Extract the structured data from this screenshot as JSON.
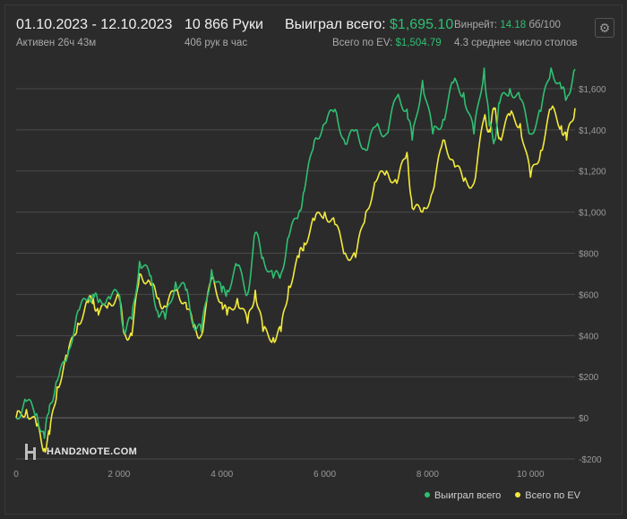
{
  "header": {
    "date_range": "01.10.2023 - 12.10.2023",
    "active": "Активен 26ч 43м",
    "hands": "10 866 Руки",
    "hands_per_hour": "406 рук в час",
    "won_total_label": "Выиграл всего:",
    "won_total_value": "$1,695.10",
    "ev_total_label": "Всего по EV:",
    "ev_total_value": "$1,504.79",
    "winrate_label": "Винрейт:",
    "winrate_value": "14.18",
    "winrate_unit": "бб/100",
    "avg_tables": "4.3 среднее число столов",
    "settings_icon": "gear-icon"
  },
  "logo": {
    "text": "HAND2NOTE.COM",
    "icon": "hand2note-logo-icon"
  },
  "chart_data": {
    "type": "line",
    "xlim": [
      0,
      10866
    ],
    "ylim": [
      -200,
      1700
    ],
    "x_ticks": [
      0,
      2000,
      4000,
      6000,
      8000,
      10000
    ],
    "x_tick_labels": [
      "0",
      "2 000",
      "4 000",
      "6 000",
      "8 000",
      "10 000"
    ],
    "y_ticks": [
      -200,
      0,
      200,
      400,
      600,
      800,
      1000,
      1200,
      1400,
      1600
    ],
    "y_tick_labels": [
      "-$200",
      "$0",
      "$200",
      "$400",
      "$600",
      "$800",
      "$1,000",
      "$1,200",
      "$1,400",
      "$1,600"
    ],
    "grid": true,
    "legend_position": "bottom-right",
    "colors": {
      "won": "#2fbf71",
      "ev": "#f2ea3c",
      "grid": "#4a4a4a"
    },
    "series": [
      {
        "name": "Выиграл всего",
        "x": [
          0,
          200,
          400,
          550,
          650,
          800,
          1000,
          1200,
          1400,
          1500,
          1600,
          1800,
          2000,
          2100,
          2250,
          2400,
          2600,
          2750,
          2900,
          3100,
          3300,
          3450,
          3600,
          3800,
          4000,
          4100,
          4300,
          4500,
          4650,
          4800,
          5000,
          5150,
          5300,
          5500,
          5600,
          5800,
          6000,
          6200,
          6400,
          6600,
          6800,
          7000,
          7200,
          7400,
          7600,
          7700,
          7900,
          8100,
          8300,
          8500,
          8700,
          8900,
          9100,
          9200,
          9300,
          9400,
          9600,
          9800,
          10000,
          10200,
          10400,
          10600,
          10700,
          10866
        ],
        "values": [
          0,
          80,
          20,
          -100,
          60,
          180,
          300,
          520,
          580,
          600,
          560,
          590,
          600,
          420,
          480,
          760,
          690,
          520,
          480,
          660,
          620,
          460,
          420,
          720,
          610,
          620,
          740,
          600,
          900,
          780,
          680,
          700,
          880,
          1000,
          1100,
          1350,
          1430,
          1500,
          1330,
          1400,
          1300,
          1420,
          1380,
          1560,
          1500,
          1350,
          1640,
          1380,
          1450,
          1630,
          1580,
          1380,
          1700,
          1420,
          1350,
          1530,
          1600,
          1550,
          1380,
          1490,
          1700,
          1600,
          1550,
          1695
        ]
      },
      {
        "name": "Всего по EV",
        "x": [
          0,
          200,
          400,
          550,
          650,
          800,
          1000,
          1200,
          1400,
          1500,
          1600,
          1800,
          2000,
          2100,
          2250,
          2400,
          2600,
          2750,
          2900,
          3100,
          3300,
          3450,
          3600,
          3800,
          4000,
          4100,
          4300,
          4500,
          4650,
          4800,
          5000,
          5150,
          5300,
          5500,
          5600,
          5800,
          6000,
          6200,
          6400,
          6600,
          6800,
          7000,
          7200,
          7400,
          7600,
          7700,
          7900,
          8100,
          8300,
          8500,
          8700,
          8900,
          9100,
          9200,
          9300,
          9400,
          9600,
          9800,
          10000,
          10200,
          10400,
          10600,
          10700,
          10866
        ],
        "values": [
          0,
          40,
          -40,
          -150,
          -80,
          150,
          300,
          460,
          560,
          580,
          500,
          560,
          590,
          410,
          400,
          700,
          660,
          580,
          540,
          620,
          560,
          440,
          400,
          680,
          560,
          500,
          580,
          460,
          620,
          420,
          390,
          420,
          640,
          780,
          850,
          960,
          1000,
          940,
          800,
          780,
          1000,
          1150,
          1200,
          1140,
          1290,
          1020,
          1000,
          1100,
          1350,
          1250,
          1150,
          1140,
          1460,
          1400,
          1500,
          1360,
          1470,
          1430,
          1170,
          1300,
          1500,
          1420,
          1350,
          1505
        ]
      }
    ]
  }
}
